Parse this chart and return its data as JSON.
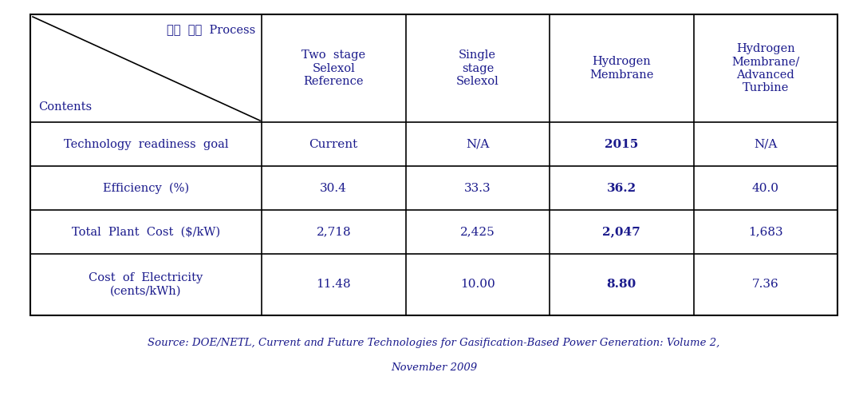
{
  "title_header_top": "적용  포집  Process",
  "title_header_bottom": "Contents",
  "col_headers": [
    "Two  stage\nSelexol\nReference",
    "Single\nstage\nSelexol",
    "Hydrogen\nMembrane",
    "Hydrogen\nMembrane/\nAdvanced\nTurbine"
  ],
  "row_labels": [
    "Technology  readiness  goal",
    "Efficiency  (%)",
    "Total  Plant  Cost  ($/kW)",
    "Cost  of  Electricity\n(cents/kWh)"
  ],
  "data": [
    [
      "Current",
      "N/A",
      "2015",
      "N/A"
    ],
    [
      "30.4",
      "33.3",
      "36.2",
      "40.0"
    ],
    [
      "2,718",
      "2,425",
      "2,047",
      "1,683"
    ],
    [
      "11.48",
      "10.00",
      "8.80",
      "7.36"
    ]
  ],
  "bold_col": 2,
  "source_line1": "Source: DOE/NETL, Current and Future Technologies for Gasification-Based Power Generation: Volume 2,",
  "source_line2": "November 2009",
  "bg_color": "#ffffff",
  "text_color": "#1a1a8c",
  "border_color": "#000000",
  "source_color": "#1a1a8c"
}
